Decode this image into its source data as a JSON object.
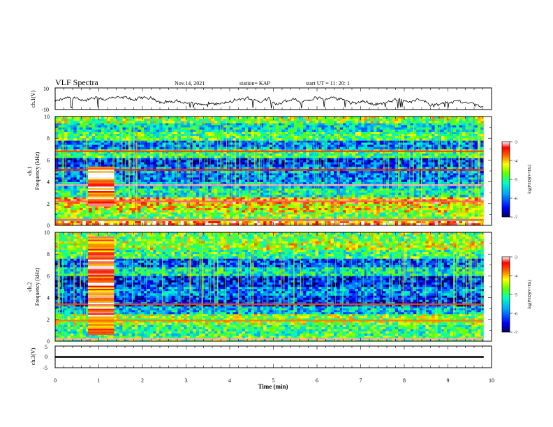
{
  "header": {
    "title": "VLF Spectra",
    "date": "Nov.14, 2021",
    "station": "station= KAP",
    "start": "start  UT =   11: 20: 1"
  },
  "chart_data": [
    {
      "type": "line",
      "panel": "ch1-waveform",
      "ylabel": "ch.1(V)",
      "ylim": [
        -10,
        10
      ],
      "ytick_labels": [
        "10",
        "-10"
      ],
      "xlim": [
        0,
        10
      ],
      "series": [
        {
          "description_free": true,
          "values_range": [
            -9,
            2
          ]
        }
      ]
    },
    {
      "type": "heatmap",
      "panel": "ch1-spectrogram",
      "ylabel_top": "ch.1",
      "ylabel": "Frequency  (kHz)",
      "ylim": [
        0,
        10
      ],
      "ytick_labels": [
        "0",
        "2",
        "4",
        "6",
        "8",
        "10"
      ],
      "xlim": [
        0,
        10
      ],
      "data_end_x": 9.82,
      "colorbar": {
        "label": "log(PSD)(V²/Hz)",
        "range": [
          -7,
          -3
        ],
        "tick_labels": [
          "-3",
          "-4",
          "-5",
          "-6",
          "-7"
        ]
      },
      "bands": [
        {
          "y": [
            0.0,
            0.4
          ],
          "level": -3.6
        },
        {
          "y": [
            0.4,
            1.2
          ],
          "level": -4.7
        },
        {
          "y": [
            1.2,
            2.0
          ],
          "level": -4.3
        },
        {
          "y": [
            2.0,
            2.6
          ],
          "level": -3.8
        },
        {
          "y": [
            2.6,
            3.4
          ],
          "level": -5.2
        },
        {
          "y": [
            3.4,
            4.0
          ],
          "level": -5.6
        },
        {
          "y": [
            4.0,
            4.8
          ],
          "level": -6.0
        },
        {
          "y": [
            4.8,
            5.4
          ],
          "level": -5.8
        },
        {
          "y": [
            5.4,
            6.2
          ],
          "level": -6.3
        },
        {
          "y": [
            6.2,
            7.0
          ],
          "level": -5.0
        },
        {
          "y": [
            7.0,
            7.8
          ],
          "level": -5.9
        },
        {
          "y": [
            7.8,
            8.6
          ],
          "level": -4.9
        },
        {
          "y": [
            8.6,
            9.4
          ],
          "level": -5.4
        },
        {
          "y": [
            9.4,
            10.0
          ],
          "level": -4.6
        }
      ],
      "lines": [
        {
          "y": 3.7,
          "level": -3.1
        },
        {
          "y": 2.2,
          "level": -3.2
        },
        {
          "y": 5.1,
          "level": -3.4
        },
        {
          "y": 6.8,
          "level": -3.6
        },
        {
          "y": 0.5,
          "level": -3.2
        }
      ],
      "burst": {
        "x": [
          0.75,
          1.35
        ],
        "y": [
          1.8,
          5.4
        ],
        "level": -3.3
      }
    },
    {
      "type": "heatmap",
      "panel": "ch2-spectrogram",
      "ylabel_top": "ch.2",
      "ylabel": "Frequency  (kHz)",
      "ylim": [
        0,
        10
      ],
      "ytick_labels": [
        "0",
        "2",
        "4",
        "6",
        "8",
        "10"
      ],
      "xlim": [
        0,
        10
      ],
      "data_end_x": 9.82,
      "colorbar": {
        "label": "log(PSD)(V²/Hz)",
        "range": [
          -7,
          -3
        ],
        "tick_labels": [
          "-3",
          "-4",
          "-5",
          "-6",
          "-7"
        ]
      },
      "bands": [
        {
          "y": [
            0.0,
            0.5
          ],
          "level": -4.8
        },
        {
          "y": [
            0.5,
            1.5
          ],
          "level": -5.0
        },
        {
          "y": [
            1.5,
            2.5
          ],
          "level": -4.6
        },
        {
          "y": [
            2.5,
            3.2
          ],
          "level": -5.6
        },
        {
          "y": [
            3.2,
            4.2
          ],
          "level": -6.3
        },
        {
          "y": [
            4.2,
            5.0
          ],
          "level": -5.9
        },
        {
          "y": [
            5.0,
            6.0
          ],
          "level": -6.4
        },
        {
          "y": [
            6.0,
            6.8
          ],
          "level": -5.3
        },
        {
          "y": [
            6.8,
            7.6
          ],
          "level": -6.1
        },
        {
          "y": [
            7.6,
            8.4
          ],
          "level": -5.0
        },
        {
          "y": [
            8.4,
            9.2
          ],
          "level": -4.5
        },
        {
          "y": [
            9.2,
            10.0
          ],
          "level": -4.7
        }
      ],
      "lines": [
        {
          "y": 0.2,
          "level": -3.1
        },
        {
          "y": 3.4,
          "level": -3.6
        },
        {
          "y": 1.9,
          "level": -3.8
        }
      ],
      "burst": {
        "x": [
          0.75,
          1.35
        ],
        "y": [
          0.6,
          9.6
        ],
        "level": -3.5
      }
    },
    {
      "type": "line",
      "panel": "ch3-waveform",
      "ylabel": "ch.3(V)",
      "ylim": [
        -5,
        5
      ],
      "ytick_labels": [
        "5",
        "0",
        "-5"
      ],
      "xlim": [
        0,
        10
      ],
      "xlabel": "Time  (min)",
      "xtick_labels": [
        "0",
        "1",
        "2",
        "3",
        "4",
        "5",
        "6",
        "7",
        "8",
        "9",
        "10"
      ],
      "series": [
        {
          "constant_value": 0,
          "thickness_band": [
            -0.4,
            0.4
          ]
        }
      ]
    }
  ],
  "colors": {
    "cmap": [
      "#0000a0",
      "#0000ff",
      "#0080ff",
      "#00ffff",
      "#00ff80",
      "#80ff00",
      "#ffff00",
      "#ff8000",
      "#ff0000",
      "#ffffff"
    ]
  }
}
